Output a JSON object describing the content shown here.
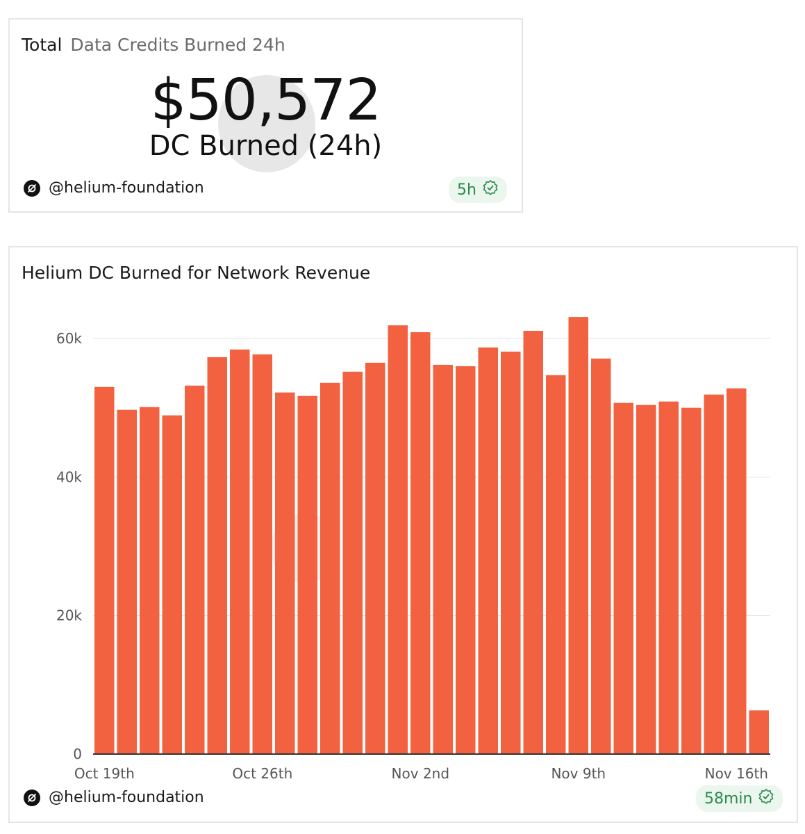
{
  "counter_card": {
    "header_primary": "Total",
    "header_secondary": "Data Credits Burned 24h",
    "value": "$50,572",
    "label": "DC Burned (24h)",
    "owner": "@helium-foundation",
    "freshness": "5h"
  },
  "chart_card": {
    "owner": "@helium-foundation",
    "freshness": "58min"
  },
  "colors": {
    "bar": "#f26240",
    "badge_bg": "#eaf6ee",
    "badge_text": "#2b8a4b"
  },
  "chart_data": {
    "type": "bar",
    "title": "Helium DC Burned for Network Revenue",
    "xlabel": "",
    "ylabel": "",
    "ylim": [
      0,
      60000
    ],
    "y_ticks": [
      "0",
      "20k",
      "40k",
      "60k"
    ],
    "x_tick_labels": [
      "Oct 19th",
      "Oct 26th",
      "Nov 2nd",
      "Nov 9th",
      "Nov 16th"
    ],
    "grid": true,
    "categories": [
      "Oct 19th",
      "Oct 20th",
      "Oct 21st",
      "Oct 22nd",
      "Oct 23rd",
      "Oct 24th",
      "Oct 25th",
      "Oct 26th",
      "Oct 27th",
      "Oct 28th",
      "Oct 29th",
      "Oct 30th",
      "Oct 31st",
      "Nov 1st",
      "Nov 2nd",
      "Nov 3rd",
      "Nov 4th",
      "Nov 5th",
      "Nov 6th",
      "Nov 7th",
      "Nov 8th",
      "Nov 9th",
      "Nov 10th",
      "Nov 11th",
      "Nov 12th",
      "Nov 13th",
      "Nov 14th",
      "Nov 15th",
      "Nov 16th",
      "Nov 17th"
    ],
    "values": [
      53000,
      49700,
      50100,
      48900,
      53200,
      57300,
      58400,
      57700,
      52200,
      51700,
      53600,
      55200,
      56500,
      61900,
      60900,
      56200,
      56000,
      58700,
      58100,
      61100,
      54700,
      63100,
      57100,
      50700,
      50400,
      50900,
      50000,
      51900,
      52800,
      6300
    ]
  }
}
